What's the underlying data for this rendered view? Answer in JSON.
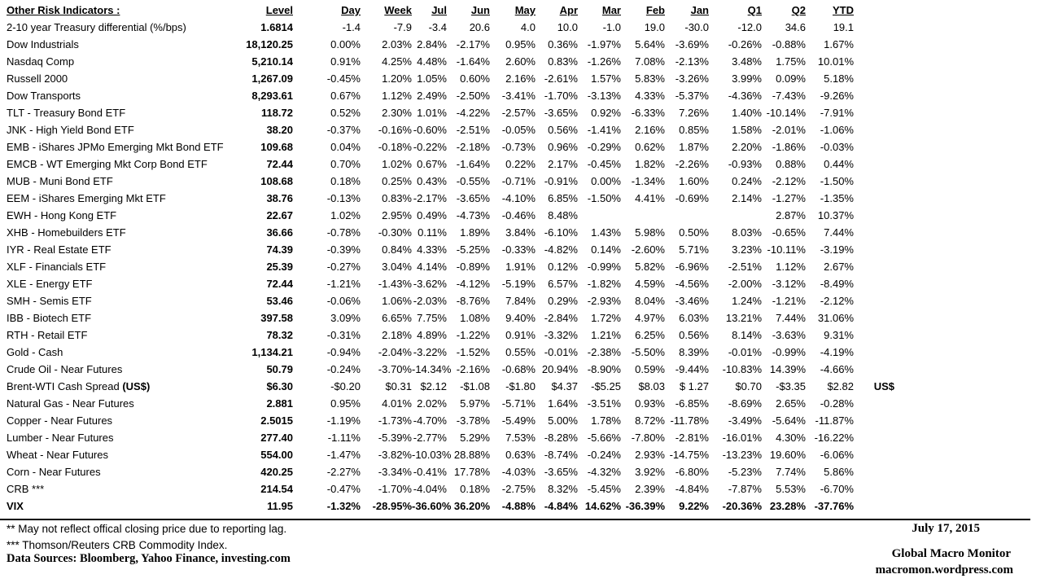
{
  "chart_data": {
    "type": "table",
    "title": "Other Risk Indicators :",
    "columns": [
      "Level",
      "Day",
      "Week",
      "Jul",
      "Jun",
      "May",
      "Apr",
      "Mar",
      "Feb",
      "Jan",
      "Q1",
      "Q2",
      "YTD"
    ],
    "rows": [
      {
        "name": "2-10 year Treasury differential (%/bps)",
        "values": [
          "1.6814",
          "-1.4",
          "-7.9",
          "-3.4",
          "20.6",
          "4.0",
          "10.0",
          "-1.0",
          "19.0",
          "-30.0",
          "-12.0",
          "34.6",
          "19.1"
        ],
        "note": ""
      },
      {
        "name": "Dow Industrials",
        "values": [
          "18,120.25",
          "0.00%",
          "2.03%",
          "2.84%",
          "-2.17%",
          "0.95%",
          "0.36%",
          "-1.97%",
          "5.64%",
          "-3.69%",
          "-0.26%",
          "-0.88%",
          "1.67%"
        ],
        "note": ""
      },
      {
        "name": "Nasdaq Comp",
        "values": [
          "5,210.14",
          "0.91%",
          "4.25%",
          "4.48%",
          "-1.64%",
          "2.60%",
          "0.83%",
          "-1.26%",
          "7.08%",
          "-2.13%",
          "3.48%",
          "1.75%",
          "10.01%"
        ],
        "note": ""
      },
      {
        "name": "Russell 2000",
        "values": [
          "1,267.09",
          "-0.45%",
          "1.20%",
          "1.05%",
          "0.60%",
          "2.16%",
          "-2.61%",
          "1.57%",
          "5.83%",
          "-3.26%",
          "3.99%",
          "0.09%",
          "5.18%"
        ],
        "note": ""
      },
      {
        "name": "Dow Transports",
        "values": [
          "8,293.61",
          "0.67%",
          "1.12%",
          "2.49%",
          "-2.50%",
          "-3.41%",
          "-1.70%",
          "-3.13%",
          "4.33%",
          "-5.37%",
          "-4.36%",
          "-7.43%",
          "-9.26%"
        ],
        "note": ""
      },
      {
        "name": "TLT - Treasury Bond ETF",
        "values": [
          "118.72",
          "0.52%",
          "2.30%",
          "1.01%",
          "-4.22%",
          "-2.57%",
          "-3.65%",
          "0.92%",
          "-6.33%",
          "7.26%",
          "1.40%",
          "-10.14%",
          "-7.91%"
        ],
        "note": ""
      },
      {
        "name": "JNK - High Yield Bond ETF",
        "values": [
          "38.20",
          "-0.37%",
          "-0.16%",
          "-0.60%",
          "-2.51%",
          "-0.05%",
          "0.56%",
          "-1.41%",
          "2.16%",
          "0.85%",
          "1.58%",
          "-2.01%",
          "-1.06%"
        ],
        "note": ""
      },
      {
        "name": "EMB - iShares JPMo Emerging Mkt Bond ETF",
        "values": [
          "109.68",
          "0.04%",
          "-0.18%",
          "-0.22%",
          "-2.18%",
          "-0.73%",
          "0.96%",
          "-0.29%",
          "0.62%",
          "1.87%",
          "2.20%",
          "-1.86%",
          "-0.03%"
        ],
        "note": ""
      },
      {
        "name": "EMCB - WT Emerging Mkt Corp Bond ETF",
        "values": [
          "72.44",
          "0.70%",
          "1.02%",
          "0.67%",
          "-1.64%",
          "0.22%",
          "2.17%",
          "-0.45%",
          "1.82%",
          "-2.26%",
          "-0.93%",
          "0.88%",
          "0.44%"
        ],
        "note": ""
      },
      {
        "name": "MUB - Muni Bond ETF",
        "values": [
          "108.68",
          "0.18%",
          "0.25%",
          "0.43%",
          "-0.55%",
          "-0.71%",
          "-0.91%",
          "0.00%",
          "-1.34%",
          "1.60%",
          "0.24%",
          "-2.12%",
          "-1.50%"
        ],
        "note": ""
      },
      {
        "name": "EEM - iShares Emerging Mkt ETF",
        "values": [
          "38.76",
          "-0.13%",
          "0.83%",
          "-2.17%",
          "-3.65%",
          "-4.10%",
          "6.85%",
          "-1.50%",
          "4.41%",
          "-0.69%",
          "2.14%",
          "-1.27%",
          "-1.35%"
        ],
        "note": ""
      },
      {
        "name": "EWH - Hong Kong ETF",
        "values": [
          "22.67",
          "1.02%",
          "2.95%",
          "0.49%",
          "-4.73%",
          "-0.46%",
          "8.48%",
          "",
          "",
          "",
          "",
          "2.87%",
          "10.37%"
        ],
        "note": ""
      },
      {
        "name": "XHB - Homebuilders ETF",
        "values": [
          "36.66",
          "-0.78%",
          "-0.30%",
          "0.11%",
          "1.89%",
          "3.84%",
          "-6.10%",
          "1.43%",
          "5.98%",
          "0.50%",
          "8.03%",
          "-0.65%",
          "7.44%"
        ],
        "note": ""
      },
      {
        "name": "IYR - Real Estate ETF",
        "values": [
          "74.39",
          "-0.39%",
          "0.84%",
          "4.33%",
          "-5.25%",
          "-0.33%",
          "-4.82%",
          "0.14%",
          "-2.60%",
          "5.71%",
          "3.23%",
          "-10.11%",
          "-3.19%"
        ],
        "note": ""
      },
      {
        "name": "XLF - Financials ETF",
        "values": [
          "25.39",
          "-0.27%",
          "3.04%",
          "4.14%",
          "-0.89%",
          "1.91%",
          "0.12%",
          "-0.99%",
          "5.82%",
          "-6.96%",
          "-2.51%",
          "1.12%",
          "2.67%"
        ],
        "note": ""
      },
      {
        "name": "XLE - Energy ETF",
        "values": [
          "72.44",
          "-1.21%",
          "-1.43%",
          "-3.62%",
          "-4.12%",
          "-5.19%",
          "6.57%",
          "-1.82%",
          "4.59%",
          "-4.56%",
          "-2.00%",
          "-3.12%",
          "-8.49%"
        ],
        "note": ""
      },
      {
        "name": "SMH - Semis ETF",
        "values": [
          "53.46",
          "-0.06%",
          "1.06%",
          "-2.03%",
          "-8.76%",
          "7.84%",
          "0.29%",
          "-2.93%",
          "8.04%",
          "-3.46%",
          "1.24%",
          "-1.21%",
          "-2.12%"
        ],
        "note": ""
      },
      {
        "name": "IBB - Biotech ETF",
        "values": [
          "397.58",
          "3.09%",
          "6.65%",
          "7.75%",
          "1.08%",
          "9.40%",
          "-2.84%",
          "1.72%",
          "4.97%",
          "6.03%",
          "13.21%",
          "7.44%",
          "31.06%"
        ],
        "note": ""
      },
      {
        "name": "RTH - Retail ETF",
        "values": [
          "78.32",
          "-0.31%",
          "2.18%",
          "4.89%",
          "-1.22%",
          "0.91%",
          "-3.32%",
          "1.21%",
          "6.25%",
          "0.56%",
          "8.14%",
          "-3.63%",
          "9.31%"
        ],
        "note": ""
      },
      {
        "name": "Gold - Cash",
        "values": [
          "1,134.21",
          "-0.94%",
          "-2.04%",
          "-3.22%",
          "-1.52%",
          "0.55%",
          "-0.01%",
          "-2.38%",
          "-5.50%",
          "8.39%",
          "-0.01%",
          "-0.99%",
          "-4.19%"
        ],
        "note": ""
      },
      {
        "name": "Crude Oil - Near Futures",
        "values": [
          "50.79",
          "-0.24%",
          "-3.70%",
          "-14.34%",
          "-2.16%",
          "-0.68%",
          "20.94%",
          "-8.90%",
          "0.59%",
          "-9.44%",
          "-10.83%",
          "14.39%",
          "-4.66%"
        ],
        "note": ""
      },
      {
        "name": "Brent-WTI Cash Spread ",
        "name_bold": "(US$)",
        "values": [
          "$6.30",
          "-$0.20",
          "$0.31",
          "$2.12",
          "-$1.08",
          "-$1.80",
          "$4.37",
          "-$5.25",
          "$8.03",
          "$ 1.27",
          "$0.70",
          "-$3.35",
          "$2.82"
        ],
        "note": "US$"
      },
      {
        "name": "Natural Gas - Near Futures",
        "values": [
          "2.881",
          "0.95%",
          "4.01%",
          "2.02%",
          "5.97%",
          "-5.71%",
          "1.64%",
          "-3.51%",
          "0.93%",
          "-6.85%",
          "-8.69%",
          "2.65%",
          "-0.28%"
        ],
        "note": ""
      },
      {
        "name": "Copper - Near Futures",
        "values": [
          "2.5015",
          "-1.19%",
          "-1.73%",
          "-4.70%",
          "-3.78%",
          "-5.49%",
          "5.00%",
          "1.78%",
          "8.72%",
          "-11.78%",
          "-3.49%",
          "-5.64%",
          "-11.87%"
        ],
        "note": ""
      },
      {
        "name": "Lumber - Near Futures",
        "values": [
          "277.40",
          "-1.11%",
          "-5.39%",
          "-2.77%",
          "5.29%",
          "7.53%",
          "-8.28%",
          "-5.66%",
          "-7.80%",
          "-2.81%",
          "-16.01%",
          "4.30%",
          "-16.22%"
        ],
        "note": ""
      },
      {
        "name": "Wheat - Near Futures",
        "values": [
          "554.00",
          "-1.47%",
          "-3.82%",
          "-10.03%",
          "28.88%",
          "0.63%",
          "-8.74%",
          "-0.24%",
          "2.93%",
          "-14.75%",
          "-13.23%",
          "19.60%",
          "-6.06%"
        ],
        "note": ""
      },
      {
        "name": "Corn - Near Futures",
        "values": [
          "420.25",
          "-2.27%",
          "-3.34%",
          "-0.41%",
          "17.78%",
          "-4.03%",
          "-3.65%",
          "-4.32%",
          "3.92%",
          "-6.80%",
          "-5.23%",
          "7.74%",
          "5.86%"
        ],
        "note": ""
      },
      {
        "name": "CRB ***",
        "values": [
          "214.54",
          "-0.47%",
          "-1.70%",
          "-4.04%",
          "0.18%",
          "-2.75%",
          "8.32%",
          "-5.45%",
          "2.39%",
          "-4.84%",
          "-7.87%",
          "5.53%",
          "-6.70%"
        ],
        "note": ""
      },
      {
        "name": "VIX",
        "bold": true,
        "values": [
          "11.95",
          "-1.32%",
          "-28.95%",
          "-36.60%",
          "36.20%",
          "-4.88%",
          "-4.84%",
          "14.62%",
          "-36.39%",
          "9.22%",
          "-20.36%",
          "23.28%",
          "-37.76%"
        ],
        "note": ""
      }
    ]
  },
  "footer": {
    "footnote_reporting": "**  May not reflect offical closing price due to reporting lag.",
    "footnote_crb": "*** Thomson/Reuters CRB Commodity Index.",
    "data_sources": "Data Sources:  Bloomberg,  Yahoo Finance, investing.com",
    "date": "July 17, 2015",
    "brand": "Global Macro Monitor",
    "site": "macromon.wordpress.com"
  }
}
